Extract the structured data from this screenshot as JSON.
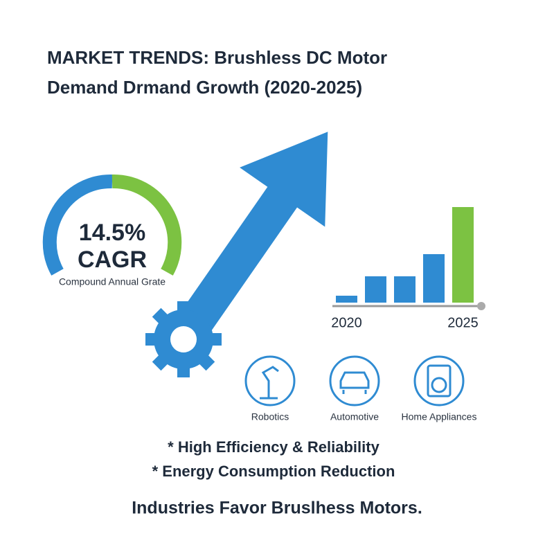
{
  "header": {
    "title_lines": [
      "MARKET TRENDS: Brushless DC Motor",
      "Demand Drmand Growth (2020-2025)"
    ]
  },
  "gauge": {
    "value": "14.5%",
    "unit": "CAGR",
    "caption": "Compound Annual Grate"
  },
  "bar_chart": {
    "type": "bar",
    "categories": [
      "2020",
      null,
      null,
      null,
      "2025"
    ],
    "values": [
      10,
      38,
      38,
      70,
      138
    ],
    "colors": [
      "#2f8bd2",
      "#2f8bd2",
      "#2f8bd2",
      "#2f8bd2",
      "#7cc242"
    ],
    "ylim": [
      0,
      140
    ]
  },
  "industries": [
    "Robotics",
    "Automotive",
    "Home Appliances"
  ],
  "bullets": [
    "* High Efficiency & Reliability",
    "* Energy Consumption Reduction"
  ],
  "footer": "Industries Favor Bruslhess Motors."
}
